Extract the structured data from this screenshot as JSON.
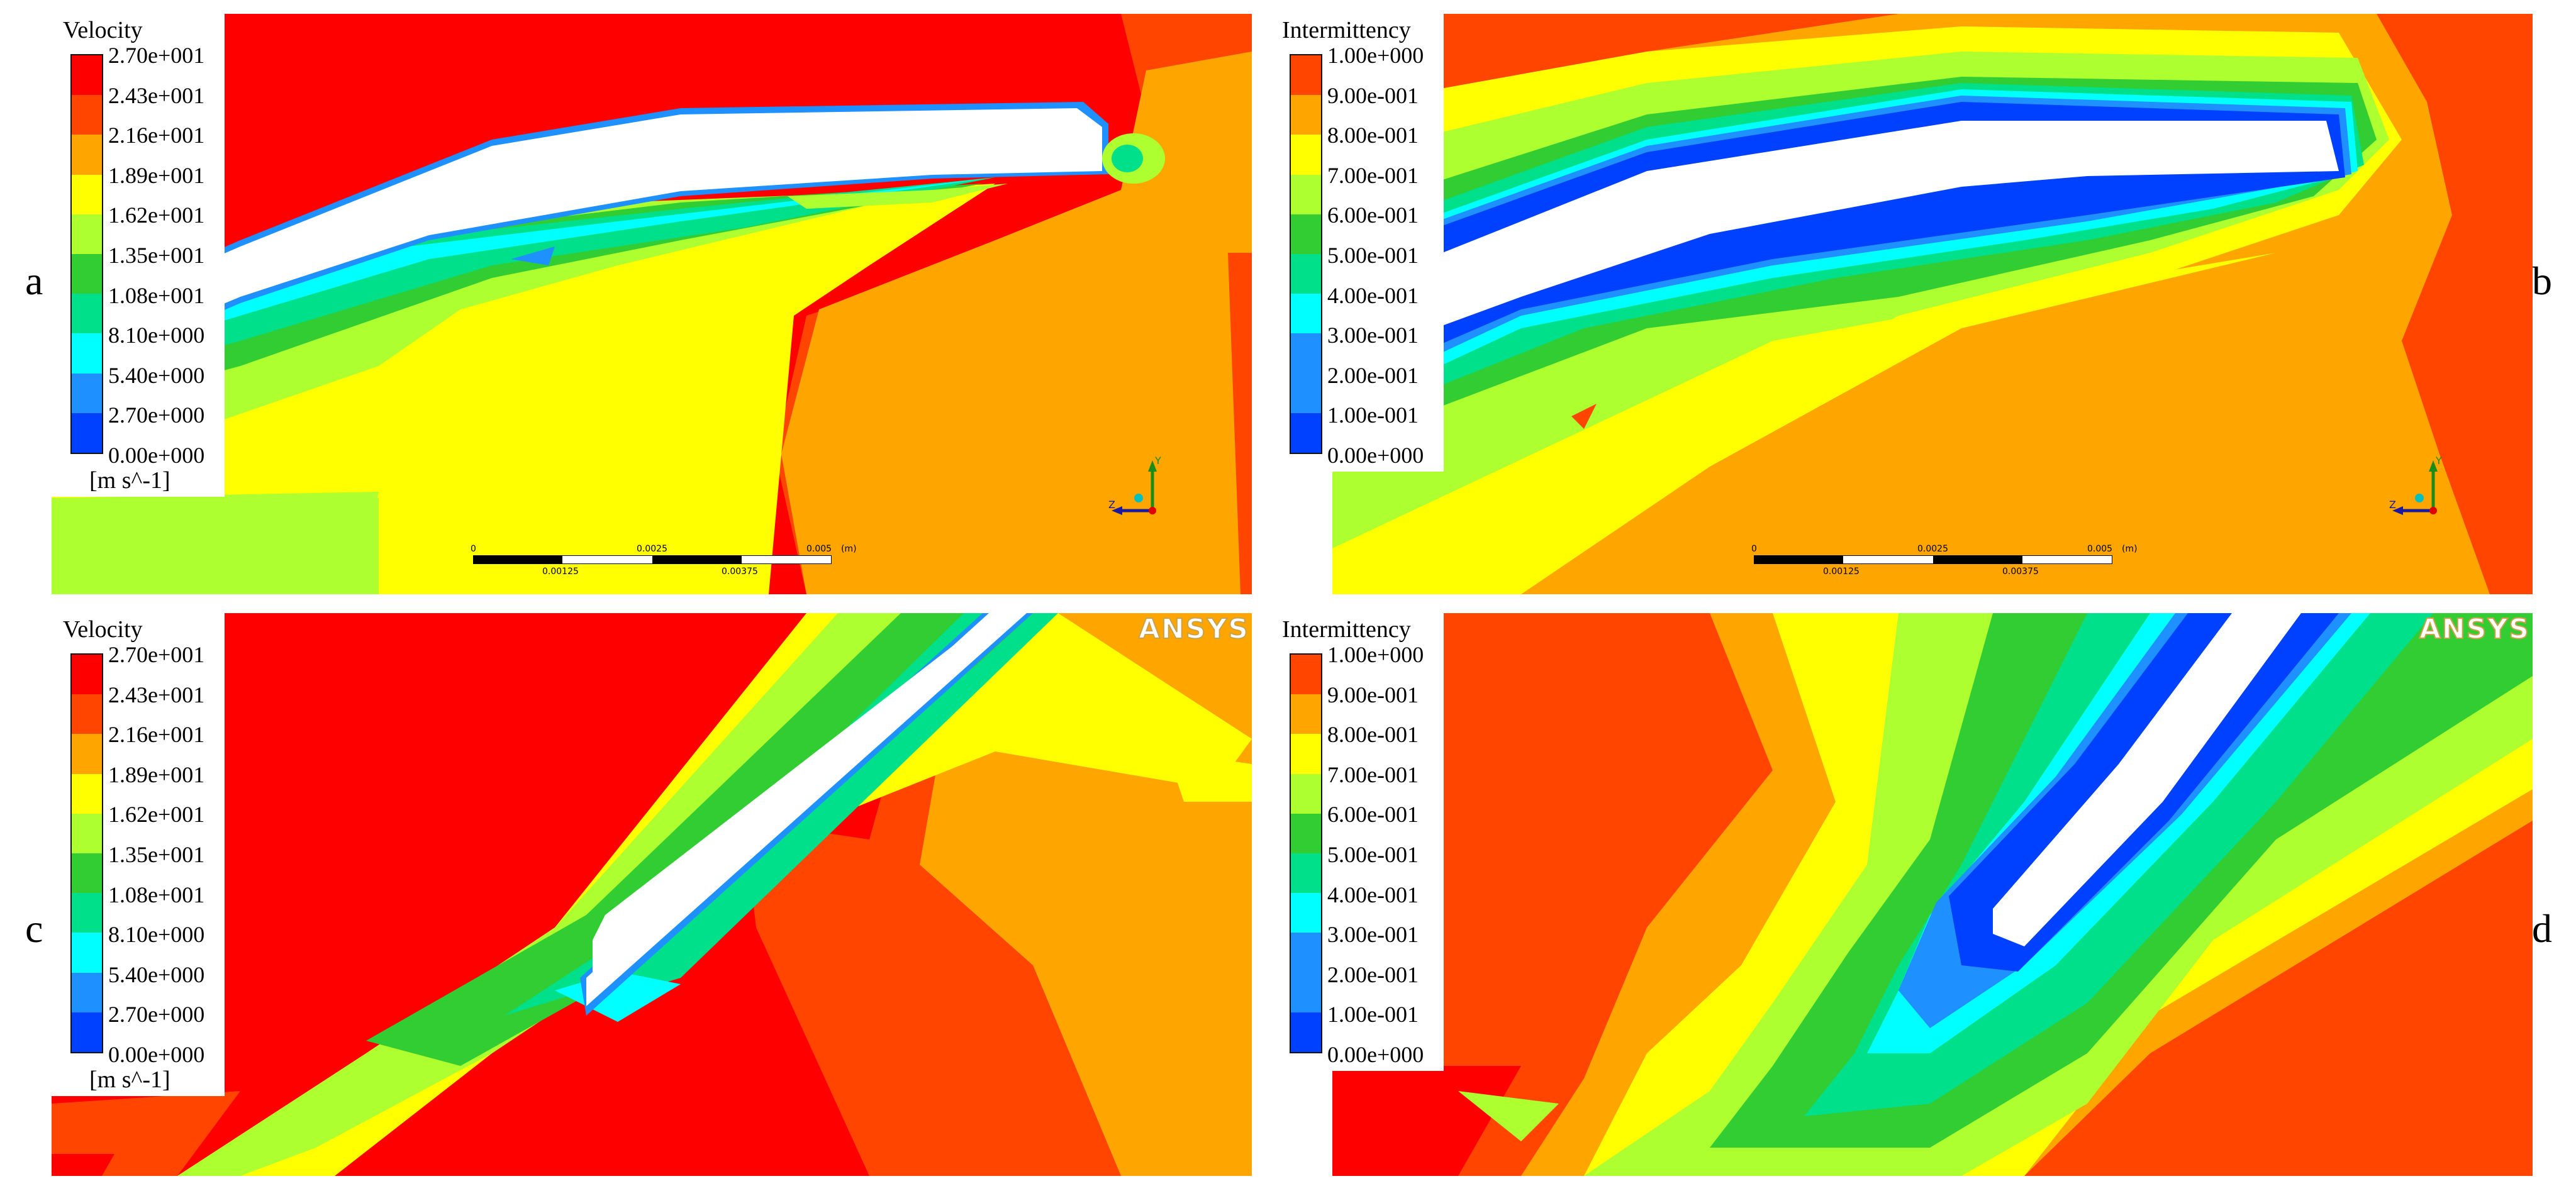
{
  "panels": [
    {
      "id": "a",
      "label": "a",
      "legend": {
        "title": "Velocity",
        "ticks": [
          "2.70e+001",
          "2.43e+001",
          "2.16e+001",
          "1.89e+001",
          "1.62e+001",
          "1.35e+001",
          "1.08e+001",
          "8.10e+000",
          "5.40e+000",
          "2.70e+000",
          "0.00e+000"
        ],
        "unit": "[m s^-1]"
      },
      "scale": {
        "labels_top": [
          "0",
          "0.0025",
          "0.005"
        ],
        "labels_bottom": [
          "0.00125",
          "0.00375"
        ],
        "unit": "(m)"
      },
      "axes": {
        "y": "Y",
        "z": "Z",
        "x": "X"
      }
    },
    {
      "id": "b",
      "label": "b",
      "legend": {
        "title": "Intermittency",
        "ticks": [
          "1.00e+000",
          "9.00e-001",
          "8.00e-001",
          "7.00e-001",
          "6.00e-001",
          "5.00e-001",
          "4.00e-001",
          "3.00e-001",
          "2.00e-001",
          "1.00e-001",
          "0.00e+000"
        ],
        "unit": ""
      },
      "scale": {
        "labels_top": [
          "0",
          "0.0025",
          "0.005"
        ],
        "labels_bottom": [
          "0.00125",
          "0.00375"
        ],
        "unit": "(m)"
      },
      "axes": {
        "y": "Y",
        "z": "Z",
        "x": "X"
      }
    },
    {
      "id": "c",
      "label": "c",
      "legend": {
        "title": "Velocity",
        "ticks": [
          "2.70e+001",
          "2.43e+001",
          "2.16e+001",
          "1.89e+001",
          "1.62e+001",
          "1.35e+001",
          "1.08e+001",
          "8.10e+000",
          "5.40e+000",
          "2.70e+000",
          "0.00e+000"
        ],
        "unit": "[m s^-1]"
      },
      "logo": "ANSYS"
    },
    {
      "id": "d",
      "label": "d",
      "legend": {
        "title": "Intermittency",
        "ticks": [
          "1.00e+000",
          "9.00e-001",
          "8.00e-001",
          "7.00e-001",
          "6.00e-001",
          "5.00e-001",
          "4.00e-001",
          "3.00e-001",
          "2.00e-001",
          "1.00e-001",
          "0.00e+000"
        ],
        "unit": ""
      },
      "logo": "ANSYS"
    }
  ],
  "colormap": [
    "#ff0000",
    "#ff4500",
    "#ffa500",
    "#ffff00",
    "#adff2f",
    "#32cd32",
    "#00e08a",
    "#00ffff",
    "#1e90ff",
    "#0040ff"
  ]
}
